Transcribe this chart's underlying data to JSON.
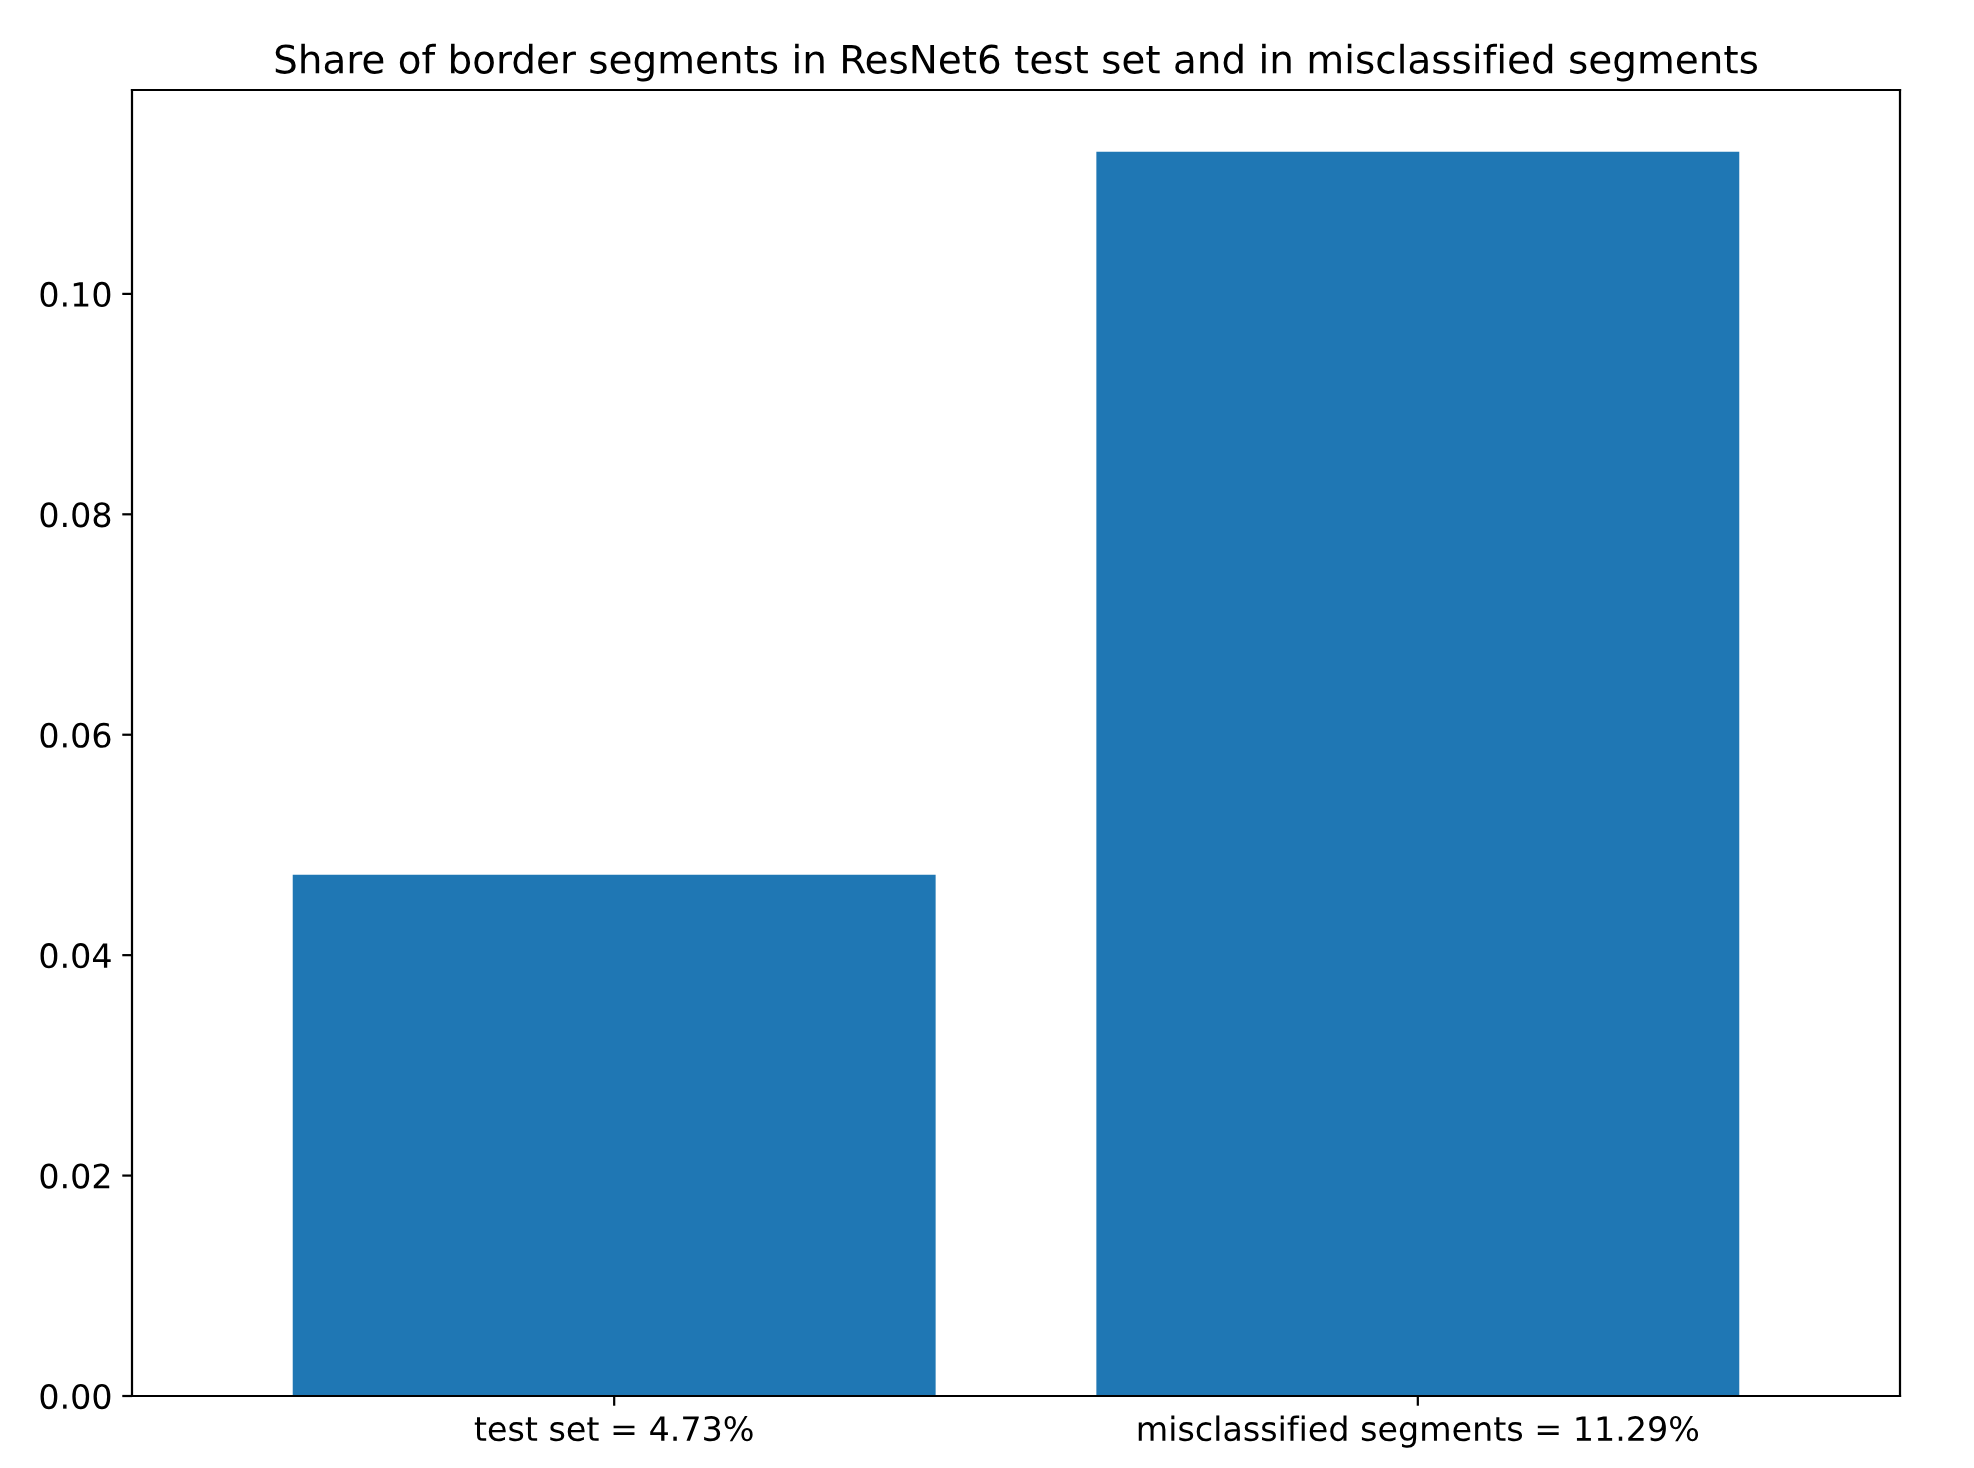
{
  "chart_data": {
    "type": "bar",
    "title": "Share of border segments in ResNet6 test set and in misclassified segments",
    "categories": [
      "test set = 4.73%",
      "misclassified segments = 11.29%"
    ],
    "values": [
      0.0473,
      0.1129
    ],
    "color": "#1f77b4",
    "ylim": [
      0,
      0.1185
    ],
    "yticks": [
      {
        "value": 0,
        "label": "0.00"
      },
      {
        "value": 0.02,
        "label": "0.02"
      },
      {
        "value": 0.04,
        "label": "0.04"
      },
      {
        "value": 0.06,
        "label": "0.06"
      },
      {
        "value": 0.08,
        "label": "0.08"
      },
      {
        "value": 0.1,
        "label": "0.10"
      }
    ],
    "grid": false
  }
}
